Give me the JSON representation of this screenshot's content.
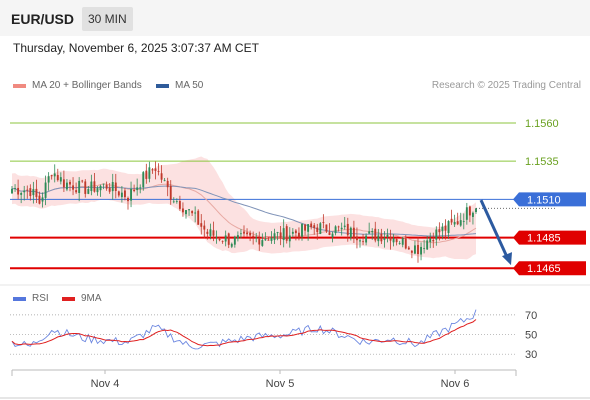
{
  "header": {
    "symbol": "EUR/USD",
    "timeframe": "30 MIN"
  },
  "datetime": "Thursday, November 6, 2025 3:07:37 AM CET",
  "legend": {
    "bollinger": {
      "label": "MA 20 + Bollinger Bands",
      "color": "#f08a80"
    },
    "ma50": {
      "label": "MA 50",
      "color": "#2f5b9a"
    }
  },
  "credit": "Research © 2025 Trading Central",
  "rsi_legend": {
    "rsi": {
      "label": "RSI",
      "color": "#5577dd"
    },
    "ma9": {
      "label": "9MA",
      "color": "#e02020"
    }
  },
  "colors": {
    "candle_up": "#2e8b57",
    "candle_down": "#c0392b",
    "target_line": "#8cc63f",
    "current_price": "#3a6fd8",
    "support": "#e00000",
    "arrow": "#2c5aa0",
    "band_fill": "#fbdcdc"
  },
  "chart_data": {
    "type": "candlestick",
    "y_range": [
      1.1456,
      1.1575
    ],
    "x_labels": [
      "Nov 4",
      "Nov 5",
      "Nov 6"
    ],
    "price_levels": [
      {
        "value": 1.156,
        "label": "1.1560",
        "kind": "target"
      },
      {
        "value": 1.1535,
        "label": "1.1535",
        "kind": "target"
      },
      {
        "value": 1.151,
        "label": "1.1510",
        "kind": "current"
      },
      {
        "value": 1.1485,
        "label": "1.1485",
        "kind": "support"
      },
      {
        "value": 1.1465,
        "label": "1.1465",
        "kind": "support"
      }
    ],
    "close_anchors": [
      [
        0,
        1.1517
      ],
      [
        6,
        1.1516
      ],
      [
        9,
        1.1508
      ],
      [
        13,
        1.1529
      ],
      [
        17,
        1.1521
      ],
      [
        24,
        1.1517
      ],
      [
        31,
        1.1519
      ],
      [
        38,
        1.1512
      ],
      [
        43,
        1.1524
      ],
      [
        47,
        1.1531
      ],
      [
        52,
        1.1513
      ],
      [
        58,
        1.1502
      ],
      [
        64,
        1.1488
      ],
      [
        72,
        1.1483
      ],
      [
        82,
        1.1485
      ],
      [
        92,
        1.1488
      ],
      [
        100,
        1.1492
      ],
      [
        108,
        1.149
      ],
      [
        116,
        1.1486
      ],
      [
        124,
        1.1487
      ],
      [
        128,
        1.1482
      ],
      [
        133,
        1.1478
      ],
      [
        138,
        1.1487
      ],
      [
        145,
        1.1494
      ],
      [
        152,
        1.1507
      ]
    ],
    "rsi": {
      "levels": [
        70,
        50,
        30
      ],
      "range": [
        20,
        75
      ],
      "rsi_anchors": [
        [
          0,
          42
        ],
        [
          6,
          38
        ],
        [
          13,
          55
        ],
        [
          24,
          46
        ],
        [
          38,
          42
        ],
        [
          47,
          57
        ],
        [
          58,
          38
        ],
        [
          66,
          40
        ],
        [
          78,
          47
        ],
        [
          90,
          50
        ],
        [
          100,
          57
        ],
        [
          110,
          48
        ],
        [
          116,
          42
        ],
        [
          124,
          46
        ],
        [
          133,
          40
        ],
        [
          140,
          52
        ],
        [
          148,
          64
        ],
        [
          152,
          72
        ]
      ]
    },
    "num_bars": 153
  }
}
